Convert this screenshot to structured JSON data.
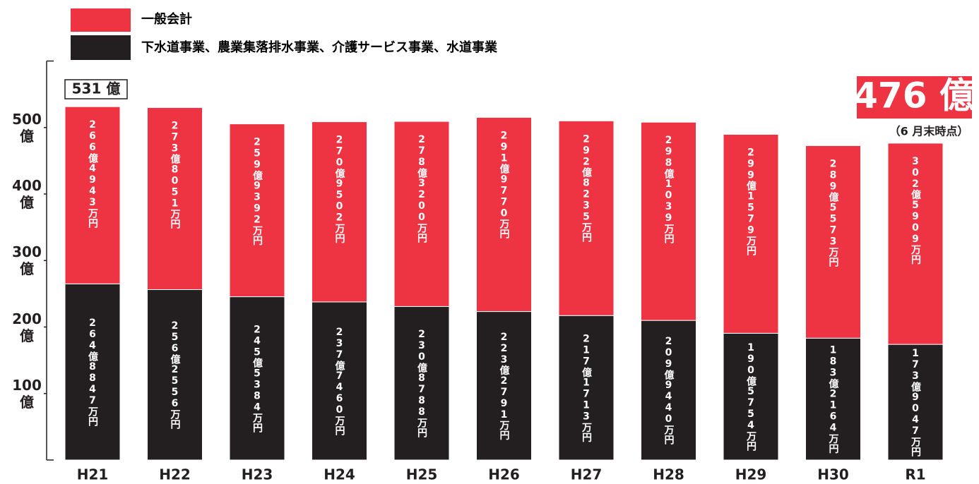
{
  "chart_data": {
    "type": "stacked_bar",
    "categories": [
      "H21",
      "H22",
      "H23",
      "H24",
      "H25",
      "H26",
      "H27",
      "H28",
      "H29",
      "H30",
      "R1"
    ],
    "series": [
      {
        "name": "下水道事業、農業集落排水事業、介護サービス事業、水道事業",
        "color": "#231f20",
        "values": [
          264.8847,
          256.2556,
          245.5384,
          237.746,
          230.8788,
          223.2791,
          217.1713,
          209.944,
          190.5754,
          183.2164,
          173.9047
        ],
        "value_labels": [
          "264億8847万円",
          "256億2556万円",
          "245億5384万円",
          "237億7460万円",
          "230億8788万円",
          "223億2791万円",
          "217億1713万円",
          "209億9440万円",
          "190億5754万円",
          "183億2164万円",
          "173億9047万円"
        ]
      },
      {
        "name": "一般会計",
        "color": "#ee3342",
        "values": [
          266.4943,
          273.8051,
          259.9392,
          270.9502,
          278.32,
          291.977,
          292.8235,
          298.1039,
          299.1579,
          289.5573,
          302.5909
        ],
        "value_labels": [
          "266億4943万円",
          "273億8051万円",
          "259億9392万円",
          "270億9502万円",
          "278億3200万円",
          "291億9770万円",
          "292億8235万円",
          "298億1039万円",
          "299億1579万円",
          "289億5573万円",
          "302億5909万円"
        ]
      }
    ],
    "annotations": [
      "531 億",
      "476 億",
      "（6 月末時点）"
    ],
    "ylim": [
      0,
      600
    ],
    "yticks": [
      {
        "value": 100,
        "label": "100\n億"
      },
      {
        "value": 200,
        "label": "200\n億"
      },
      {
        "value": 300,
        "label": "300\n億"
      },
      {
        "value": 400,
        "label": "400\n億"
      },
      {
        "value": 500,
        "label": "500\n億"
      }
    ]
  }
}
